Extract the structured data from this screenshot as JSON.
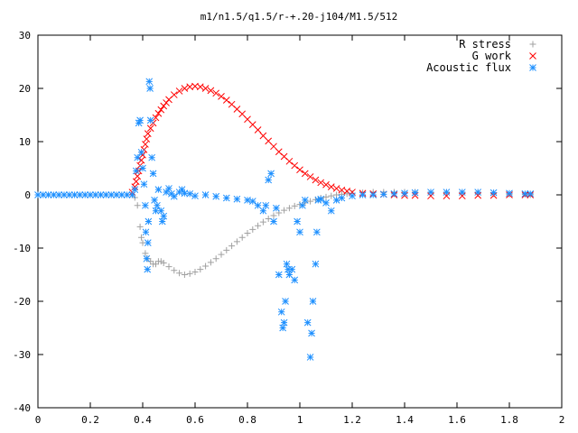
{
  "chart_data": {
    "type": "scatter",
    "title": "m1/n1.5/q1.5/r-+.20-j104/M1.5/512",
    "xlabel": "",
    "ylabel": "",
    "xlim": [
      0,
      2
    ],
    "ylim": [
      -40,
      30
    ],
    "xticks": [
      0,
      0.2,
      0.4,
      0.6,
      0.8,
      1,
      1.2,
      1.4,
      1.6,
      1.8,
      2
    ],
    "xtick_labels": [
      "0",
      "0.2",
      "0.4",
      "0.6",
      "0.8",
      "1",
      "1.2",
      "1.4",
      "1.6",
      "1.8",
      "2"
    ],
    "yticks": [
      -40,
      -30,
      -20,
      -10,
      0,
      10,
      20,
      30
    ],
    "ytick_labels": [
      "-40",
      "-30",
      "-20",
      "-10",
      "0",
      "10",
      "20",
      "30"
    ],
    "grid": false,
    "legend_position": "top-right",
    "series": [
      {
        "name": "R stress",
        "marker": "plus",
        "color": "#a0a0a0",
        "points": [
          [
            0.0,
            0
          ],
          [
            0.1,
            0
          ],
          [
            0.2,
            0
          ],
          [
            0.3,
            0
          ],
          [
            0.36,
            0
          ],
          [
            0.37,
            -0.5
          ],
          [
            0.38,
            -2
          ],
          [
            0.39,
            -6
          ],
          [
            0.395,
            -8
          ],
          [
            0.4,
            -9
          ],
          [
            0.41,
            -11
          ],
          [
            0.42,
            -12
          ],
          [
            0.43,
            -12.5
          ],
          [
            0.44,
            -13
          ],
          [
            0.45,
            -13
          ],
          [
            0.46,
            -12.5
          ],
          [
            0.47,
            -12.5
          ],
          [
            0.48,
            -12.8
          ],
          [
            0.5,
            -13.5
          ],
          [
            0.52,
            -14.2
          ],
          [
            0.54,
            -14.7
          ],
          [
            0.56,
            -15
          ],
          [
            0.58,
            -14.8
          ],
          [
            0.6,
            -14.5
          ],
          [
            0.62,
            -14
          ],
          [
            0.64,
            -13.4
          ],
          [
            0.66,
            -12.7
          ],
          [
            0.68,
            -12
          ],
          [
            0.7,
            -11.2
          ],
          [
            0.72,
            -10.4
          ],
          [
            0.74,
            -9.6
          ],
          [
            0.76,
            -8.8
          ],
          [
            0.78,
            -8
          ],
          [
            0.8,
            -7.2
          ],
          [
            0.82,
            -6.5
          ],
          [
            0.84,
            -5.8
          ],
          [
            0.86,
            -5.1
          ],
          [
            0.88,
            -4.5
          ],
          [
            0.9,
            -3.9
          ],
          [
            0.92,
            -3.4
          ],
          [
            0.94,
            -2.9
          ],
          [
            0.96,
            -2.5
          ],
          [
            0.98,
            -2.1
          ],
          [
            1.0,
            -1.8
          ],
          [
            1.02,
            -1.5
          ],
          [
            1.04,
            -1.2
          ],
          [
            1.06,
            -0.9
          ],
          [
            1.08,
            -0.6
          ],
          [
            1.1,
            -0.4
          ],
          [
            1.12,
            -0.2
          ],
          [
            1.14,
            0
          ],
          [
            1.16,
            0.1
          ],
          [
            1.18,
            0.2
          ],
          [
            1.2,
            0.3
          ],
          [
            1.24,
            0.4
          ],
          [
            1.28,
            0.5
          ],
          [
            1.32,
            0.5
          ],
          [
            1.36,
            0.5
          ],
          [
            1.4,
            0.5
          ],
          [
            1.44,
            0.5
          ],
          [
            1.5,
            0.4
          ],
          [
            1.56,
            0.4
          ],
          [
            1.62,
            0.3
          ],
          [
            1.68,
            0.3
          ],
          [
            1.74,
            0.2
          ],
          [
            1.8,
            0.1
          ],
          [
            1.86,
            0.1
          ],
          [
            1.88,
            0
          ]
        ]
      },
      {
        "name": "G work",
        "marker": "cross",
        "color": "#ff0000",
        "points": [
          [
            0.36,
            0.5
          ],
          [
            0.37,
            1.5
          ],
          [
            0.375,
            2.5
          ],
          [
            0.38,
            3.5
          ],
          [
            0.385,
            4.5
          ],
          [
            0.39,
            5.5
          ],
          [
            0.395,
            6.5
          ],
          [
            0.4,
            7.5
          ],
          [
            0.405,
            8.5
          ],
          [
            0.41,
            9.5
          ],
          [
            0.415,
            10.5
          ],
          [
            0.42,
            11.5
          ],
          [
            0.43,
            12.5
          ],
          [
            0.44,
            13.5
          ],
          [
            0.45,
            14.5
          ],
          [
            0.46,
            15.3
          ],
          [
            0.47,
            16
          ],
          [
            0.48,
            16.7
          ],
          [
            0.49,
            17.3
          ],
          [
            0.5,
            17.9
          ],
          [
            0.52,
            18.8
          ],
          [
            0.54,
            19.5
          ],
          [
            0.56,
            20
          ],
          [
            0.58,
            20.3
          ],
          [
            0.6,
            20.4
          ],
          [
            0.62,
            20.3
          ],
          [
            0.64,
            20
          ],
          [
            0.66,
            19.6
          ],
          [
            0.68,
            19.1
          ],
          [
            0.7,
            18.5
          ],
          [
            0.72,
            17.8
          ],
          [
            0.74,
            17
          ],
          [
            0.76,
            16.1
          ],
          [
            0.78,
            15.2
          ],
          [
            0.8,
            14.2
          ],
          [
            0.82,
            13.2
          ],
          [
            0.84,
            12.2
          ],
          [
            0.86,
            11.1
          ],
          [
            0.88,
            10.1
          ],
          [
            0.9,
            9.1
          ],
          [
            0.92,
            8.1
          ],
          [
            0.94,
            7.2
          ],
          [
            0.96,
            6.3
          ],
          [
            0.98,
            5.5
          ],
          [
            1.0,
            4.7
          ],
          [
            1.02,
            4
          ],
          [
            1.04,
            3.4
          ],
          [
            1.06,
            2.8
          ],
          [
            1.08,
            2.3
          ],
          [
            1.1,
            1.9
          ],
          [
            1.12,
            1.5
          ],
          [
            1.14,
            1.2
          ],
          [
            1.16,
            0.9
          ],
          [
            1.18,
            0.7
          ],
          [
            1.2,
            0.5
          ],
          [
            1.24,
            0.3
          ],
          [
            1.28,
            0.2
          ],
          [
            1.32,
            0.1
          ],
          [
            1.36,
            0
          ],
          [
            1.4,
            -0.1
          ],
          [
            1.44,
            -0.1
          ],
          [
            1.5,
            -0.2
          ],
          [
            1.56,
            -0.2
          ],
          [
            1.62,
            -0.2
          ],
          [
            1.68,
            -0.1
          ],
          [
            1.74,
            -0.1
          ],
          [
            1.8,
            0
          ],
          [
            1.86,
            0
          ],
          [
            1.88,
            0
          ]
        ]
      },
      {
        "name": "Acoustic flux",
        "marker": "star",
        "color": "#1e90ff",
        "points": [
          [
            0.0,
            0
          ],
          [
            0.02,
            0
          ],
          [
            0.04,
            0
          ],
          [
            0.06,
            0
          ],
          [
            0.08,
            0
          ],
          [
            0.1,
            0
          ],
          [
            0.12,
            0
          ],
          [
            0.14,
            0
          ],
          [
            0.16,
            0
          ],
          [
            0.18,
            0
          ],
          [
            0.2,
            0
          ],
          [
            0.22,
            0
          ],
          [
            0.24,
            0
          ],
          [
            0.26,
            0
          ],
          [
            0.28,
            0
          ],
          [
            0.3,
            0
          ],
          [
            0.32,
            0
          ],
          [
            0.34,
            0
          ],
          [
            0.36,
            0
          ],
          [
            0.37,
            1
          ],
          [
            0.375,
            4.5
          ],
          [
            0.38,
            7
          ],
          [
            0.385,
            13.5
          ],
          [
            0.39,
            14
          ],
          [
            0.395,
            8
          ],
          [
            0.4,
            5
          ],
          [
            0.405,
            2
          ],
          [
            0.41,
            -2
          ],
          [
            0.412,
            -7
          ],
          [
            0.415,
            -12
          ],
          [
            0.418,
            -14
          ],
          [
            0.42,
            -9
          ],
          [
            0.422,
            -5
          ],
          [
            0.425,
            21.3
          ],
          [
            0.428,
            20
          ],
          [
            0.43,
            14
          ],
          [
            0.435,
            7
          ],
          [
            0.44,
            4
          ],
          [
            0.445,
            -1
          ],
          [
            0.45,
            -3
          ],
          [
            0.455,
            -2
          ],
          [
            0.46,
            1
          ],
          [
            0.47,
            -3
          ],
          [
            0.475,
            -5
          ],
          [
            0.48,
            -4
          ],
          [
            0.49,
            0.5
          ],
          [
            0.5,
            1.2
          ],
          [
            0.51,
            0.2
          ],
          [
            0.52,
            -0.3
          ],
          [
            0.54,
            0.5
          ],
          [
            0.55,
            1
          ],
          [
            0.56,
            0.3
          ],
          [
            0.58,
            0.2
          ],
          [
            0.6,
            -0.2
          ],
          [
            0.64,
            0
          ],
          [
            0.68,
            -0.3
          ],
          [
            0.72,
            -0.6
          ],
          [
            0.76,
            -0.8
          ],
          [
            0.8,
            -1
          ],
          [
            0.82,
            -1.2
          ],
          [
            0.84,
            -2
          ],
          [
            0.86,
            -3
          ],
          [
            0.87,
            -2
          ],
          [
            0.88,
            2.8
          ],
          [
            0.89,
            4
          ],
          [
            0.9,
            -5
          ],
          [
            0.91,
            -2.5
          ],
          [
            0.92,
            -15
          ],
          [
            0.93,
            -22
          ],
          [
            0.935,
            -25
          ],
          [
            0.94,
            -24
          ],
          [
            0.945,
            -20
          ],
          [
            0.95,
            -13
          ],
          [
            0.955,
            -14
          ],
          [
            0.96,
            -15
          ],
          [
            0.97,
            -14
          ],
          [
            0.98,
            -16
          ],
          [
            0.99,
            -5
          ],
          [
            1.0,
            -7
          ],
          [
            1.01,
            -2
          ],
          [
            1.02,
            -1
          ],
          [
            1.03,
            -24
          ],
          [
            1.04,
            -30.5
          ],
          [
            1.045,
            -26
          ],
          [
            1.05,
            -20
          ],
          [
            1.06,
            -13
          ],
          [
            1.065,
            -7
          ],
          [
            1.07,
            -1
          ],
          [
            1.08,
            -0.8
          ],
          [
            1.1,
            -1.5
          ],
          [
            1.12,
            -3
          ],
          [
            1.14,
            -1
          ],
          [
            1.16,
            -0.6
          ],
          [
            1.2,
            -0.2
          ],
          [
            1.24,
            0
          ],
          [
            1.28,
            0
          ],
          [
            1.32,
            0.1
          ],
          [
            1.36,
            0.2
          ],
          [
            1.4,
            0.3
          ],
          [
            1.44,
            0.4
          ],
          [
            1.5,
            0.5
          ],
          [
            1.56,
            0.5
          ],
          [
            1.62,
            0.5
          ],
          [
            1.68,
            0.5
          ],
          [
            1.74,
            0.4
          ],
          [
            1.8,
            0.3
          ],
          [
            1.86,
            0.2
          ],
          [
            1.88,
            0.2
          ]
        ]
      }
    ]
  }
}
